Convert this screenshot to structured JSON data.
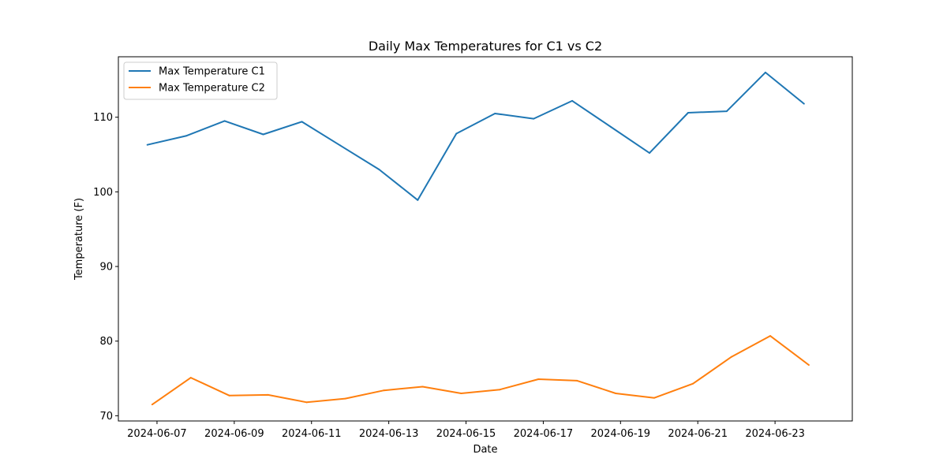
{
  "chart_data": {
    "type": "line",
    "title": "Daily Max Temperatures for C1 vs C2",
    "xlabel": "Date",
    "ylabel": "Temperature (F)",
    "xlim": [
      "2024-06-06",
      "2024-06-25"
    ],
    "ylim": [
      69.3,
      118.1
    ],
    "yticks": [
      70,
      80,
      90,
      100,
      110
    ],
    "xticks": [
      "2024-06-07",
      "2024-06-09",
      "2024-06-11",
      "2024-06-13",
      "2024-06-15",
      "2024-06-17",
      "2024-06-19",
      "2024-06-21",
      "2024-06-23"
    ],
    "grid": false,
    "legend_position": "upper-left",
    "series": [
      {
        "name": "Max Temperature C1",
        "color": "#1f77b4",
        "x": [
          "2024-06-06T18:00",
          "2024-06-07T18:00",
          "2024-06-08T18:00",
          "2024-06-09T18:00",
          "2024-06-10T18:00",
          "2024-06-11T18:00",
          "2024-06-12T18:00",
          "2024-06-13T18:00",
          "2024-06-14T18:00",
          "2024-06-15T18:00",
          "2024-06-16T18:00",
          "2024-06-17T18:00",
          "2024-06-18T18:00",
          "2024-06-19T18:00",
          "2024-06-20T18:00",
          "2024-06-21T18:00",
          "2024-06-22T18:00",
          "2024-06-23T18:00"
        ],
        "values": [
          106.3,
          107.5,
          109.5,
          107.7,
          109.4,
          106.2,
          103.0,
          98.9,
          107.8,
          110.5,
          109.8,
          112.2,
          108.7,
          105.2,
          110.6,
          110.8,
          116.0,
          111.8
        ]
      },
      {
        "name": "Max Temperature C2",
        "color": "#ff7f0e",
        "x": [
          "2024-06-06T21:00",
          "2024-06-07T21:00",
          "2024-06-08T21:00",
          "2024-06-09T21:00",
          "2024-06-10T21:00",
          "2024-06-11T21:00",
          "2024-06-12T21:00",
          "2024-06-13T21:00",
          "2024-06-14T21:00",
          "2024-06-15T21:00",
          "2024-06-16T21:00",
          "2024-06-17T21:00",
          "2024-06-18T21:00",
          "2024-06-19T21:00",
          "2024-06-20T21:00",
          "2024-06-21T21:00",
          "2024-06-22T21:00",
          "2024-06-23T21:00"
        ],
        "values": [
          71.5,
          75.1,
          72.7,
          72.8,
          71.8,
          72.3,
          73.4,
          73.9,
          73.0,
          73.5,
          74.9,
          74.7,
          73.0,
          72.4,
          74.3,
          77.9,
          80.7,
          76.8
        ]
      }
    ]
  }
}
